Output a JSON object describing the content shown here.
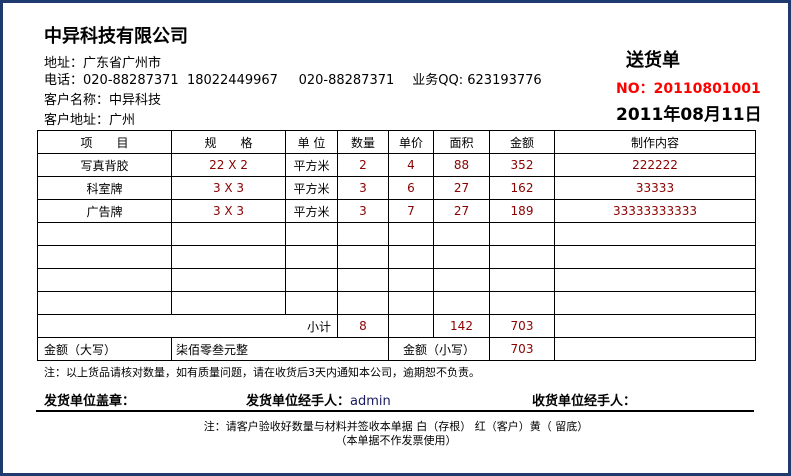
{
  "company": "中异科技有限公司",
  "address": "地址：广东省广州市",
  "phone_label": "电话：",
  "phones": "020-88287371  18022449967     020-88287371",
  "qq": "业务QQ: 623193776",
  "customer_name": "客户名称：中异科技",
  "customer_address": "客户地址：广州",
  "doc_title": "送货单",
  "doc_no": "NO：20110801001",
  "date": "2011年08月11日",
  "table": {
    "headers": [
      "项　　目",
      "规　　格",
      "单 位",
      "数量",
      "单价",
      "面积",
      "金额",
      "制作内容"
    ],
    "rows": [
      [
        "写真背胶",
        "22 X 2",
        "平方米",
        "2",
        "4",
        "88",
        "352",
        "222222"
      ],
      [
        "科室牌",
        "3 X 3",
        "平方米",
        "3",
        "6",
        "27",
        "162",
        "33333"
      ],
      [
        "广告牌",
        "3 X 3",
        "平方米",
        "3",
        "7",
        "27",
        "189",
        "33333333333"
      ]
    ],
    "subtotal_label": "小计",
    "subtotal_qty": "8",
    "subtotal_area": "142",
    "subtotal_amount": "703",
    "amount_upper_label": "金额（大写）",
    "amount_upper": "柒佰零叁元整",
    "amount_lower_label": "金额（小写）",
    "amount_lower": "703"
  },
  "note": "注：以上货品请核对数量，如有质量问题，请在收货后3天内通知本公司，逾期恕不负责。",
  "seal_label": "发货单位盖章：",
  "sender_label": "发货单位经手人：",
  "sender": "admin",
  "receiver_label": "收货单位经手人：",
  "footer1": "注：请客户验收好数量与材料并签收本单据 白（存根） 红（客户）黄（ 留底）",
  "footer2": "（本单据不作发票使用）"
}
